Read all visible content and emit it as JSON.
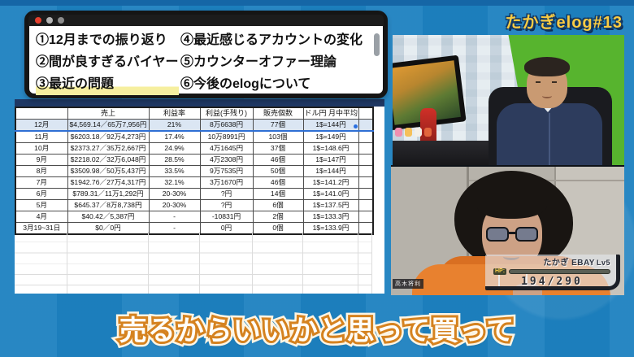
{
  "header": {
    "badge": "たかぎelog#13"
  },
  "caption": {
    "text": "売るからいいかと思って買って"
  },
  "topics_window": {
    "items_left": [
      "①12月までの振り返り",
      "②間が良すぎるバイヤー",
      "③最近の問題"
    ],
    "items_right": [
      "④最近感じるアカウントの変化",
      "⑤カウンターオファー理論",
      "⑥今後のelogについて"
    ]
  },
  "spreadsheet": {
    "headers": [
      "",
      "売上",
      "利益率",
      "利益(手残り)",
      "販売個数",
      "ドル円 月中平均"
    ],
    "rows": [
      {
        "month": "12月",
        "sales": "$4,569.14／65万7,956円",
        "margin": "21%",
        "profit": "8万6638円",
        "units": "77個",
        "rate": "1$=144円",
        "selected": true
      },
      {
        "month": "11月",
        "sales": "$6203.18／92万4,273円",
        "margin": "17.4%",
        "profit": "10万8991円",
        "units": "103個",
        "rate": "1$=149円"
      },
      {
        "month": "10月",
        "sales": "$2373.27／35万2,667円",
        "margin": "24.9%",
        "profit": "4万1645円",
        "units": "37個",
        "rate": "1$=148.6円"
      },
      {
        "month": "9月",
        "sales": "$2218.02／32万6,048円",
        "margin": "28.5%",
        "profit": "4万2308円",
        "units": "46個",
        "rate": "1$=147円"
      },
      {
        "month": "8月",
        "sales": "$3509.98／50万5,437円",
        "margin": "33.5%",
        "profit": "9万7535円",
        "units": "50個",
        "rate": "1$=144円"
      },
      {
        "month": "7月",
        "sales": "$1942.76／27万4,317円",
        "margin": "32.1%",
        "profit": "3万1670円",
        "units": "46個",
        "rate": "1$=141.2円"
      },
      {
        "month": "6月",
        "sales": "$789.31／11万1,292円",
        "margin": "20-30%",
        "profit": "?円",
        "units": "14個",
        "rate": "1$=141.0円"
      },
      {
        "month": "5月",
        "sales": "$645.37／8万8,738円",
        "margin": "20-30%",
        "profit": "?円",
        "units": "6個",
        "rate": "1$=137.5円"
      },
      {
        "month": "4月",
        "sales": "$40.42／5,387円",
        "margin": "-",
        "profit": "-10831円",
        "units": "2個",
        "rate": "1$=133.3円"
      },
      {
        "month": "3月19~31日",
        "sales": "$0／0円",
        "margin": "-",
        "profit": "0円",
        "units": "0個",
        "rate": "1$=133.9円"
      }
    ]
  },
  "webcam_bottom": {
    "name_tag": "高木将利",
    "hp_overlay": {
      "trainer": "たかぎ EBAY",
      "level": "Lv5",
      "hp_label": "HP:",
      "hp_value": "194/290",
      "hp_percent": 67
    }
  },
  "colors": {
    "bg_blue": "#1d81c0",
    "accent_gold": "#f9cb43",
    "caption_orange": "#d5821f",
    "green_screen": "#57b42e",
    "hoodie_orange": "#e8812f",
    "row_highlight": "#dbe6f3",
    "sheet_topbar_navy": "#1f3864",
    "highlight_yellow": "#f6ef9f"
  }
}
